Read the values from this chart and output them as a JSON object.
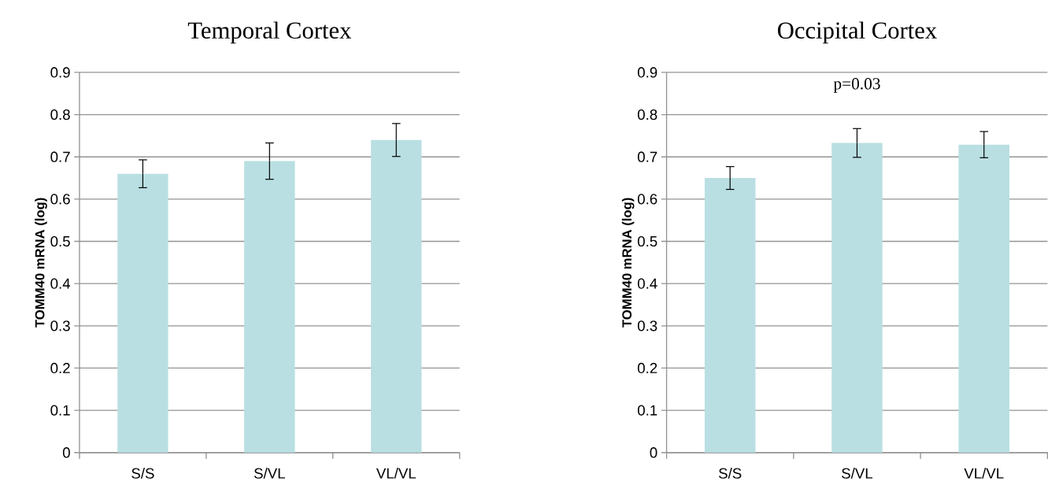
{
  "chart_data": [
    {
      "type": "bar",
      "title": "Temporal Cortex",
      "ylabel": "TOMM40 mRNA (log)",
      "categories": [
        "S/S",
        "S/VL",
        "VL/VL"
      ],
      "values": [
        0.66,
        0.69,
        0.74
      ],
      "errors": [
        0.033,
        0.043,
        0.039
      ],
      "color": "#b9dfe2",
      "ylim": [
        0,
        0.9
      ],
      "yticks": [
        0,
        0.1,
        0.2,
        0.3,
        0.4,
        0.5,
        0.6,
        0.7,
        0.8,
        0.9
      ],
      "grid": "y"
    },
    {
      "type": "bar",
      "title": "Occipital Cortex",
      "ylabel": "TOMM40 mRNA (log)",
      "categories": [
        "S/S",
        "S/VL",
        "VL/VL"
      ],
      "values": [
        0.65,
        0.733,
        0.729
      ],
      "errors": [
        0.027,
        0.034,
        0.031
      ],
      "color": "#b9dfe2",
      "ylim": [
        0,
        0.9
      ],
      "yticks": [
        0,
        0.1,
        0.2,
        0.3,
        0.4,
        0.5,
        0.6,
        0.7,
        0.8,
        0.9
      ],
      "grid": "y",
      "annotations": [
        "p=0.03"
      ]
    }
  ]
}
